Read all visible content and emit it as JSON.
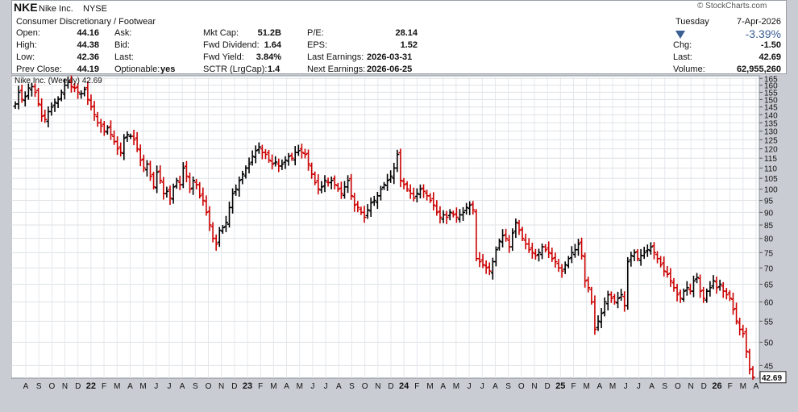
{
  "header": {
    "symbol": "NKE",
    "company": "Nike Inc.",
    "exchange": "NYSE",
    "sector": "Consumer Discretionary / Footwear",
    "watermark": "© StockCharts.com",
    "day": "Tuesday",
    "date": "7-Apr-2026",
    "pct_change": "-3.39%",
    "down_color": "#3a5f92",
    "fields": {
      "open_label": "Open:",
      "open": "44.16",
      "high_label": "High:",
      "high": "44.38",
      "low_label": "Low:",
      "low": "42.36",
      "prev_label": "Prev Close:",
      "prev": "44.19",
      "ask_label": "Ask:",
      "bid_label": "Bid:",
      "last_label": "Last:",
      "optionable_label": "Optionable:",
      "optionable": "yes",
      "mktcap_label": "Mkt Cap:",
      "mktcap": "51.2B",
      "fwddiv_label": "Fwd Dividend:",
      "fwddiv": "1.64",
      "fwdyield_label": "Fwd Yield:",
      "fwdyield": "3.84%",
      "sctr_label": "SCTR (LrgCap):",
      "sctr": "1.4",
      "pe_label": "P/E:",
      "pe": "28.14",
      "eps_label": "EPS:",
      "eps": "1.52",
      "lastearn_label": "Last Earnings:",
      "lastearn": "2026-03-31",
      "nextearn_label": "Next Earnings:",
      "nextearn": "2026-06-25",
      "chg_label": "Chg:",
      "chg": "-1.50",
      "last2_label": "Last:",
      "last2": "42.69",
      "volume_label": "Volume:",
      "volume": "62,955,260"
    }
  },
  "chart_data": {
    "type": "ohlc",
    "legend": "Nike Inc. (Weekly) 42.69",
    "last_price": 42.69,
    "last_price_label": "42.69",
    "up_color": "#000000",
    "down_color": "#cc0000",
    "y_scale": "log",
    "ylim": [
      42.5,
      167
    ],
    "y_ticks": [
      45,
      50,
      55,
      60,
      65,
      70,
      75,
      80,
      85,
      90,
      95,
      100,
      105,
      110,
      115,
      120,
      125,
      130,
      135,
      140,
      145,
      150,
      155,
      160,
      165
    ],
    "x_ticks": [
      "A",
      "S",
      "O",
      "N",
      "D",
      "22",
      "F",
      "M",
      "A",
      "M",
      "J",
      "J",
      "A",
      "S",
      "O",
      "N",
      "D",
      "23",
      "F",
      "M",
      "A",
      "M",
      "J",
      "J",
      "A",
      "S",
      "O",
      "N",
      "D",
      "24",
      "F",
      "M",
      "A",
      "M",
      "J",
      "J",
      "A",
      "S",
      "O",
      "N",
      "D",
      "25",
      "F",
      "M",
      "A",
      "M",
      "J",
      "J",
      "A",
      "S",
      "O",
      "N",
      "D",
      "26",
      "F",
      "M",
      "A"
    ],
    "x_start": "2021-08",
    "x_end": "2026-04",
    "closes": [
      147,
      155,
      150,
      152,
      158,
      159,
      155,
      147,
      139,
      137,
      142,
      145,
      148,
      150,
      155,
      160,
      162,
      159,
      158,
      155,
      154,
      157,
      150,
      145,
      140,
      135,
      133,
      130,
      132,
      128,
      124,
      120,
      118,
      126,
      128,
      127,
      125,
      120,
      114,
      110,
      112,
      106,
      101,
      108,
      104,
      98,
      99,
      96,
      101,
      104,
      102,
      110,
      106,
      100,
      104,
      102,
      97,
      95,
      90,
      85,
      80,
      78,
      83,
      84,
      86,
      92,
      98,
      100,
      104,
      107,
      110,
      112,
      116,
      119,
      121,
      118,
      117,
      114,
      112,
      113,
      111,
      112,
      114,
      116,
      115,
      118,
      119,
      118,
      117,
      112,
      107,
      103,
      100,
      101,
      104,
      103,
      104,
      102,
      100,
      98,
      101,
      104,
      97,
      93,
      92,
      90,
      88,
      91,
      94,
      95,
      97,
      100,
      102,
      104,
      106,
      110,
      117,
      104,
      102,
      100,
      98,
      96,
      98,
      100,
      99,
      97,
      95,
      93,
      90,
      88,
      89,
      88,
      90,
      89,
      88,
      89,
      90,
      92,
      93,
      91,
      73,
      72,
      71,
      70,
      69,
      72,
      76,
      79,
      81,
      80,
      77,
      82,
      86,
      83,
      80,
      78,
      76,
      75,
      74,
      75,
      77,
      76,
      75,
      73,
      72,
      70,
      69,
      71,
      73,
      75,
      76,
      78,
      74,
      66,
      64,
      60,
      53,
      55,
      57,
      60,
      62,
      61,
      60,
      61,
      62,
      59,
      72,
      74,
      75,
      73,
      74,
      75,
      76,
      77,
      75,
      73,
      71,
      69,
      68,
      66,
      64,
      62,
      61,
      63,
      64,
      63,
      66,
      67,
      63,
      61,
      63,
      64,
      66,
      64,
      65,
      63,
      62,
      61,
      58,
      55,
      53,
      52,
      48,
      44.16,
      42.69
    ]
  }
}
